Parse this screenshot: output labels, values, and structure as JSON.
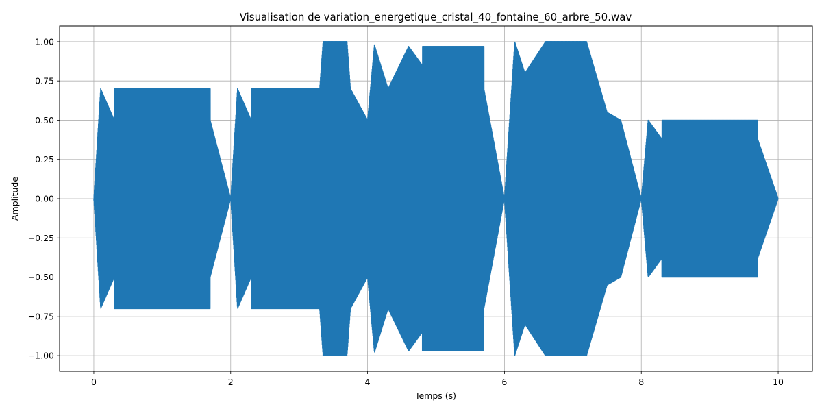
{
  "chart_data": {
    "type": "line",
    "title": "Visualisation de variation_energetique_cristal_40_fontaine_60_arbre_50.wav",
    "xlabel": "Temps (s)",
    "ylabel": "Amplitude",
    "xlim": [
      -0.5,
      10.5
    ],
    "ylim": [
      -1.1,
      1.1
    ],
    "xticks": [
      0,
      2,
      4,
      6,
      8,
      10
    ],
    "xtick_labels": [
      "0",
      "2",
      "4",
      "6",
      "8",
      "10"
    ],
    "yticks": [
      -1.0,
      -0.75,
      -0.5,
      -0.25,
      0.0,
      0.25,
      0.5,
      0.75,
      1.0
    ],
    "ytick_labels": [
      "−1.00",
      "−0.75",
      "−0.50",
      "−0.25",
      "0.00",
      "0.25",
      "0.50",
      "0.75",
      "1.00"
    ],
    "grid": true,
    "line_color": "#1f77b4",
    "series": [
      {
        "kind": "envelope",
        "t": [
          0.0,
          0.1,
          0.3,
          0.3,
          1.7,
          1.7,
          2.0,
          2.1,
          2.3,
          2.3,
          3.3,
          3.35,
          3.7,
          3.75,
          4.0,
          4.1,
          4.3,
          4.6,
          4.8,
          4.8,
          5.7,
          5.7,
          6.0,
          6.15,
          6.3,
          6.6,
          7.2,
          7.5,
          7.7,
          7.7,
          8.0,
          8.1,
          8.3,
          8.3,
          9.7,
          9.7,
          10.0
        ],
        "amp": [
          0.0,
          0.7,
          0.5,
          0.7,
          0.7,
          0.5,
          0.0,
          0.7,
          0.5,
          0.7,
          0.7,
          1.0,
          1.0,
          0.7,
          0.5,
          0.98,
          0.7,
          0.97,
          0.85,
          0.97,
          0.97,
          0.7,
          0.0,
          1.0,
          0.8,
          1.0,
          1.0,
          0.55,
          0.5,
          0.5,
          0.0,
          0.5,
          0.38,
          0.5,
          0.5,
          0.38,
          0.0
        ]
      }
    ]
  }
}
